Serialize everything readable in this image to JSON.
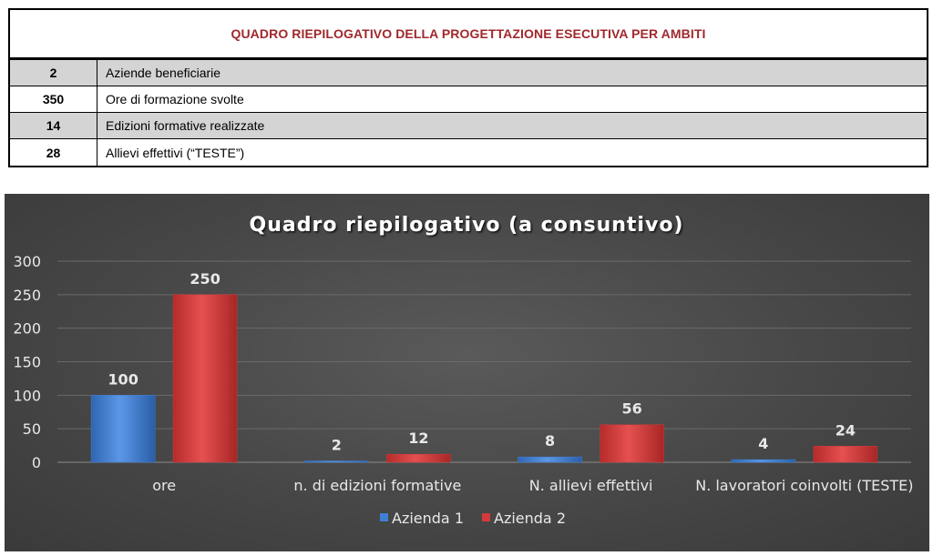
{
  "table": {
    "title": "QUADRO RIEPILOGATIVO DELLA PROGETTAZIONE ESECUTIVA PER AMBITI",
    "rows": [
      {
        "value": "2",
        "label": "Aziende beneficiarie"
      },
      {
        "value": "350",
        "label": "Ore di formazione svolte"
      },
      {
        "value": "14",
        "label": "Edizioni formative realizzate"
      },
      {
        "value": "28",
        "label": "Allievi effettivi (“TESTE”)"
      }
    ]
  },
  "chart_data": {
    "type": "bar",
    "title": "Quadro riepilogativo (a consuntivo)",
    "categories": [
      "ore",
      "n. di edizioni formative",
      "N. allievi effettivi",
      "N. lavoratori coinvolti (TESTE)"
    ],
    "series": [
      {
        "name": "Azienda 1",
        "values": [
          100,
          2,
          8,
          4
        ],
        "color": "#3f7fd4"
      },
      {
        "name": "Azienda 2",
        "values": [
          250,
          12,
          56,
          24
        ],
        "color": "#d43a3a"
      }
    ],
    "ylim": [
      0,
      300
    ],
    "yticks": [
      0,
      50,
      100,
      150,
      200,
      250,
      300
    ],
    "grid": true,
    "legend": "bottom",
    "data_labels": true
  }
}
